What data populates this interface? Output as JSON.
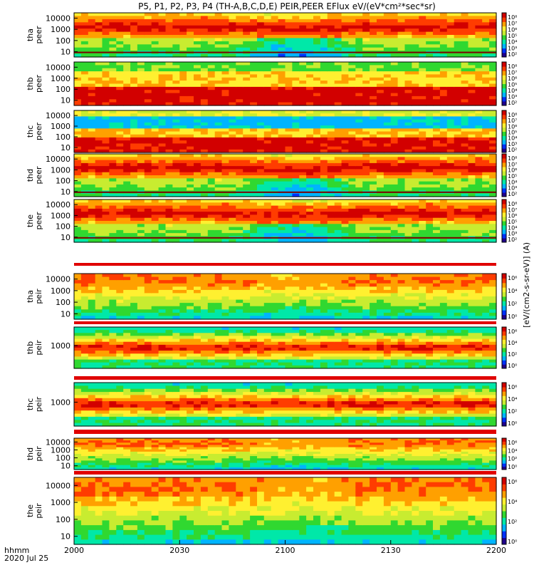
{
  "chart_data": {
    "type": "heatmap",
    "title": "P5, P1, P2, P3, P4 (TH-A,B,C,D,E) PEIR,PEER EFlux eV/(eV*cm²*sec*sr)",
    "footer": {
      "time_unit": "hhmm",
      "date": "2020 Jul 25"
    },
    "x": {
      "ticks": [
        "2000",
        "2030",
        "2100",
        "2130",
        "2200"
      ],
      "range": [
        "20:00",
        "22:00"
      ]
    },
    "colorbar": {
      "label": "[eV/(cm2-s-sr-eV)] (A)",
      "tick_labels_wide": [
        "10⁸",
        "10⁷",
        "10⁶",
        "10⁵",
        "10⁴",
        "10³",
        "10²"
      ],
      "tick_labels_narrow": [
        "10⁶",
        "10⁴",
        "10²",
        "10⁰"
      ],
      "colors": [
        "#20008c",
        "#0030ff",
        "#00b4ff",
        "#00e8a8",
        "#30d830",
        "#c8ec30",
        "#fff030",
        "#ffa000",
        "#ff3c00",
        "#d20000"
      ]
    },
    "panels": [
      {
        "probe": "tha",
        "species": "peer",
        "y_ticks": [
          "10000",
          "1000",
          "100",
          "10"
        ],
        "scale": "log",
        "profile": "electron"
      },
      {
        "probe": "thb",
        "species": "peer",
        "y_ticks": [
          "10000",
          "1000",
          "100",
          "10"
        ],
        "scale": "log",
        "profile": "electron_b"
      },
      {
        "probe": "thc",
        "species": "peer",
        "y_ticks": [
          "10000",
          "1000",
          "100",
          "10"
        ],
        "scale": "log",
        "profile": "electron_c"
      },
      {
        "probe": "thd",
        "species": "peer",
        "y_ticks": [
          "10000",
          "1000",
          "100",
          "10"
        ],
        "scale": "log",
        "profile": "electron"
      },
      {
        "probe": "the",
        "species": "peer",
        "y_ticks": [
          "10000",
          "1000",
          "100",
          "10"
        ],
        "scale": "log",
        "profile": "electron"
      },
      {
        "probe": "tha",
        "species": "peir",
        "y_ticks": [
          "10000",
          "1000",
          "100",
          "10"
        ],
        "scale": "log",
        "profile": "ion"
      },
      {
        "probe": "thb",
        "species": "peir",
        "y_ticks": [
          "1000"
        ],
        "scale": "log",
        "profile": "ion_band"
      },
      {
        "probe": "thc",
        "species": "peir",
        "y_ticks": [
          "1000"
        ],
        "scale": "log",
        "profile": "ion_band"
      },
      {
        "probe": "thd",
        "species": "peir",
        "y_ticks": [
          "10000",
          "1000",
          "100",
          "10"
        ],
        "scale": "log",
        "profile": "ion"
      },
      {
        "probe": "the",
        "species": "peir",
        "y_ticks": [
          "10000",
          "1000",
          "100",
          "10"
        ],
        "scale": "log",
        "profile": "ion"
      }
    ]
  }
}
